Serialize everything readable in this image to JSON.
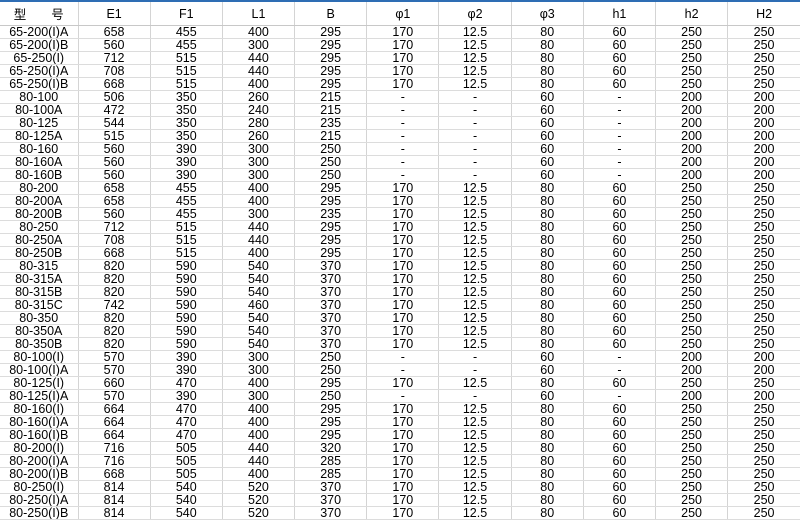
{
  "table": {
    "headers": [
      "型　　号",
      "E1",
      "F1",
      "L1",
      "B",
      "φ1",
      "φ2",
      "φ3",
      "h1",
      "h2",
      "H2"
    ],
    "rows": [
      [
        "65-200(I)A",
        "658",
        "455",
        "400",
        "295",
        "170",
        "12.5",
        "80",
        "60",
        "250",
        "250"
      ],
      [
        "65-200(I)B",
        "560",
        "455",
        "300",
        "295",
        "170",
        "12.5",
        "80",
        "60",
        "250",
        "250"
      ],
      [
        "65-250(I)",
        "712",
        "515",
        "440",
        "295",
        "170",
        "12.5",
        "80",
        "60",
        "250",
        "250"
      ],
      [
        "65-250(I)A",
        "708",
        "515",
        "440",
        "295",
        "170",
        "12.5",
        "80",
        "60",
        "250",
        "250"
      ],
      [
        "65-250(I)B",
        "668",
        "515",
        "400",
        "295",
        "170",
        "12.5",
        "80",
        "60",
        "250",
        "250"
      ],
      [
        "80-100",
        "506",
        "350",
        "260",
        "215",
        "-",
        "-",
        "60",
        "-",
        "200",
        "200"
      ],
      [
        "80-100A",
        "472",
        "350",
        "240",
        "215",
        "-",
        "-",
        "60",
        "-",
        "200",
        "200"
      ],
      [
        "80-125",
        "544",
        "350",
        "280",
        "235",
        "-",
        "-",
        "60",
        "-",
        "200",
        "200"
      ],
      [
        "80-125A",
        "515",
        "350",
        "260",
        "215",
        "-",
        "-",
        "60",
        "-",
        "200",
        "200"
      ],
      [
        "80-160",
        "560",
        "390",
        "300",
        "250",
        "-",
        "-",
        "60",
        "-",
        "200",
        "200"
      ],
      [
        "80-160A",
        "560",
        "390",
        "300",
        "250",
        "-",
        "-",
        "60",
        "-",
        "200",
        "200"
      ],
      [
        "80-160B",
        "560",
        "390",
        "300",
        "250",
        "-",
        "-",
        "60",
        "-",
        "200",
        "200"
      ],
      [
        "80-200",
        "658",
        "455",
        "400",
        "295",
        "170",
        "12.5",
        "80",
        "60",
        "250",
        "250"
      ],
      [
        "80-200A",
        "658",
        "455",
        "400",
        "295",
        "170",
        "12.5",
        "80",
        "60",
        "250",
        "250"
      ],
      [
        "80-200B",
        "560",
        "455",
        "300",
        "235",
        "170",
        "12.5",
        "80",
        "60",
        "250",
        "250"
      ],
      [
        "80-250",
        "712",
        "515",
        "440",
        "295",
        "170",
        "12.5",
        "80",
        "60",
        "250",
        "250"
      ],
      [
        "80-250A",
        "708",
        "515",
        "440",
        "295",
        "170",
        "12.5",
        "80",
        "60",
        "250",
        "250"
      ],
      [
        "80-250B",
        "668",
        "515",
        "400",
        "295",
        "170",
        "12.5",
        "80",
        "60",
        "250",
        "250"
      ],
      [
        "80-315",
        "820",
        "590",
        "540",
        "370",
        "170",
        "12.5",
        "80",
        "60",
        "250",
        "250"
      ],
      [
        "80-315A",
        "820",
        "590",
        "540",
        "370",
        "170",
        "12.5",
        "80",
        "60",
        "250",
        "250"
      ],
      [
        "80-315B",
        "820",
        "590",
        "540",
        "370",
        "170",
        "12.5",
        "80",
        "60",
        "250",
        "250"
      ],
      [
        "80-315C",
        "742",
        "590",
        "460",
        "370",
        "170",
        "12.5",
        "80",
        "60",
        "250",
        "250"
      ],
      [
        "80-350",
        "820",
        "590",
        "540",
        "370",
        "170",
        "12.5",
        "80",
        "60",
        "250",
        "250"
      ],
      [
        "80-350A",
        "820",
        "590",
        "540",
        "370",
        "170",
        "12.5",
        "80",
        "60",
        "250",
        "250"
      ],
      [
        "80-350B",
        "820",
        "590",
        "540",
        "370",
        "170",
        "12.5",
        "80",
        "60",
        "250",
        "250"
      ],
      [
        "80-100(I)",
        "570",
        "390",
        "300",
        "250",
        "-",
        "-",
        "60",
        "-",
        "200",
        "200"
      ],
      [
        "80-100(I)A",
        "570",
        "390",
        "300",
        "250",
        "-",
        "-",
        "60",
        "-",
        "200",
        "200"
      ],
      [
        "80-125(I)",
        "660",
        "470",
        "400",
        "295",
        "170",
        "12.5",
        "80",
        "60",
        "250",
        "250"
      ],
      [
        "80-125(I)A",
        "570",
        "390",
        "300",
        "250",
        "-",
        "-",
        "60",
        "-",
        "200",
        "200"
      ],
      [
        "80-160(I)",
        "664",
        "470",
        "400",
        "295",
        "170",
        "12.5",
        "80",
        "60",
        "250",
        "250"
      ],
      [
        "80-160(I)A",
        "664",
        "470",
        "400",
        "295",
        "170",
        "12.5",
        "80",
        "60",
        "250",
        "250"
      ],
      [
        "80-160(I)B",
        "664",
        "470",
        "400",
        "295",
        "170",
        "12.5",
        "80",
        "60",
        "250",
        "250"
      ],
      [
        "80-200(I)",
        "716",
        "505",
        "440",
        "320",
        "170",
        "12.5",
        "80",
        "60",
        "250",
        "250"
      ],
      [
        "80-200(I)A",
        "716",
        "505",
        "440",
        "285",
        "170",
        "12.5",
        "80",
        "60",
        "250",
        "250"
      ],
      [
        "80-200(I)B",
        "668",
        "505",
        "400",
        "285",
        "170",
        "12.5",
        "80",
        "60",
        "250",
        "250"
      ],
      [
        "80-250(I)",
        "814",
        "540",
        "520",
        "370",
        "170",
        "12.5",
        "80",
        "60",
        "250",
        "250"
      ],
      [
        "80-250(I)A",
        "814",
        "540",
        "520",
        "370",
        "170",
        "12.5",
        "80",
        "60",
        "250",
        "250"
      ],
      [
        "80-250(I)B",
        "814",
        "540",
        "520",
        "370",
        "170",
        "12.5",
        "80",
        "60",
        "250",
        "250"
      ]
    ]
  },
  "colors": {
    "top_border": "#2e6db4",
    "grid": "#d4d4d4"
  }
}
